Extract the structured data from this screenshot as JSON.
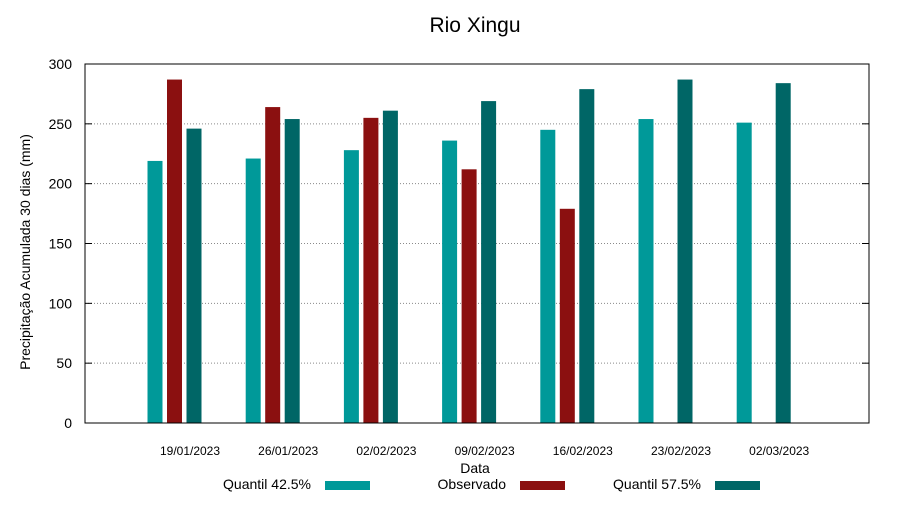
{
  "chart_data": {
    "type": "bar",
    "title": "Rio Xingu",
    "xlabel": "Data",
    "ylabel": "Precipitação Acumulada 30 dias (mm)",
    "ylim": [
      0,
      300
    ],
    "yticks": [
      0,
      50,
      100,
      150,
      200,
      250,
      300
    ],
    "grid": true,
    "legend_position": "bottom",
    "categories": [
      "19/01/2023",
      "26/01/2023",
      "02/02/2023",
      "09/02/2023",
      "16/02/2023",
      "23/02/2023",
      "02/03/2023"
    ],
    "series": [
      {
        "name": "Quantil 42.5%",
        "color": "#009999",
        "values": [
          219,
          221,
          228,
          236,
          245,
          254,
          251
        ]
      },
      {
        "name": "Observado",
        "color": "#8b1010",
        "values": [
          287,
          264,
          255,
          212,
          179,
          null,
          null
        ]
      },
      {
        "name": "Quantil 57.5%",
        "color": "#006666",
        "values": [
          246,
          254,
          261,
          269,
          279,
          287,
          284
        ]
      }
    ]
  }
}
